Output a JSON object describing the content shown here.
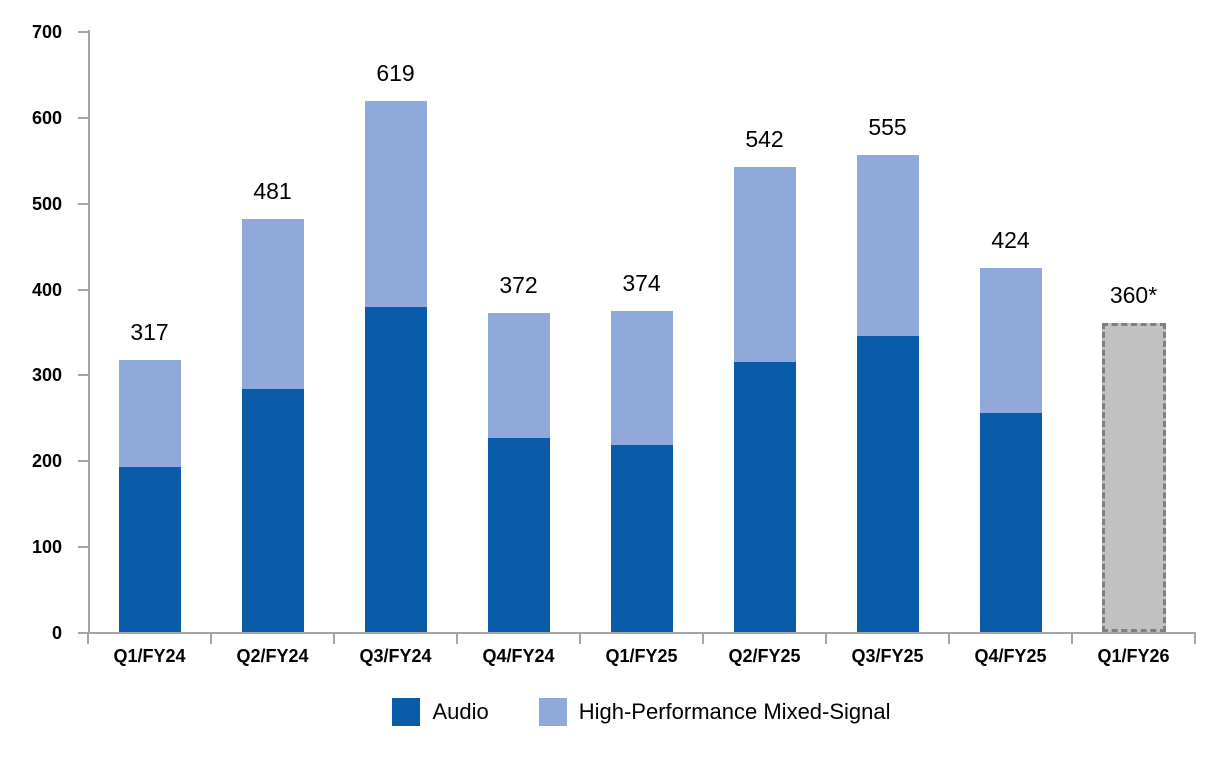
{
  "chart_data": {
    "type": "bar",
    "subtype": "stacked-column",
    "title": "",
    "categories": [
      "Q1/FY24",
      "Q2/FY24",
      "Q3/FY24",
      "Q4/FY24",
      "Q1/FY25",
      "Q2/FY25",
      "Q3/FY25",
      "Q4/FY25",
      "Q1/FY26"
    ],
    "series": [
      {
        "name": "Audio",
        "color": "#0b5ca8",
        "values": [
          192,
          283,
          378,
          226,
          218,
          315,
          345,
          255,
          null
        ]
      },
      {
        "name": "High-Performance Mixed-Signal",
        "color": "#8faada",
        "values": [
          125,
          198,
          241,
          146,
          156,
          227,
          210,
          169,
          null
        ]
      }
    ],
    "totals": [
      317,
      481,
      619,
      372,
      374,
      542,
      555,
      424,
      360
    ],
    "total_labels": [
      "317",
      "481",
      "619",
      "372",
      "374",
      "542",
      "555",
      "424",
      "360*"
    ],
    "forecast_bar": {
      "category": "Q1/FY26",
      "value": 360,
      "label": "360*",
      "fill_color": "#c1c1c1",
      "border_color": "#7f7f7f",
      "border_style": "dashed"
    },
    "xlabel": "",
    "ylabel": "",
    "y_axis": {
      "min": 0,
      "max": 700,
      "tick_interval": 100,
      "ticks": [
        0,
        100,
        200,
        300,
        400,
        500,
        600,
        700
      ]
    },
    "grid": false,
    "legend_position": "bottom",
    "axis_color": "#a6a6a6"
  },
  "legend": {
    "audio_label": "Audio",
    "hpms_label": "High-Performance Mixed-Signal"
  }
}
